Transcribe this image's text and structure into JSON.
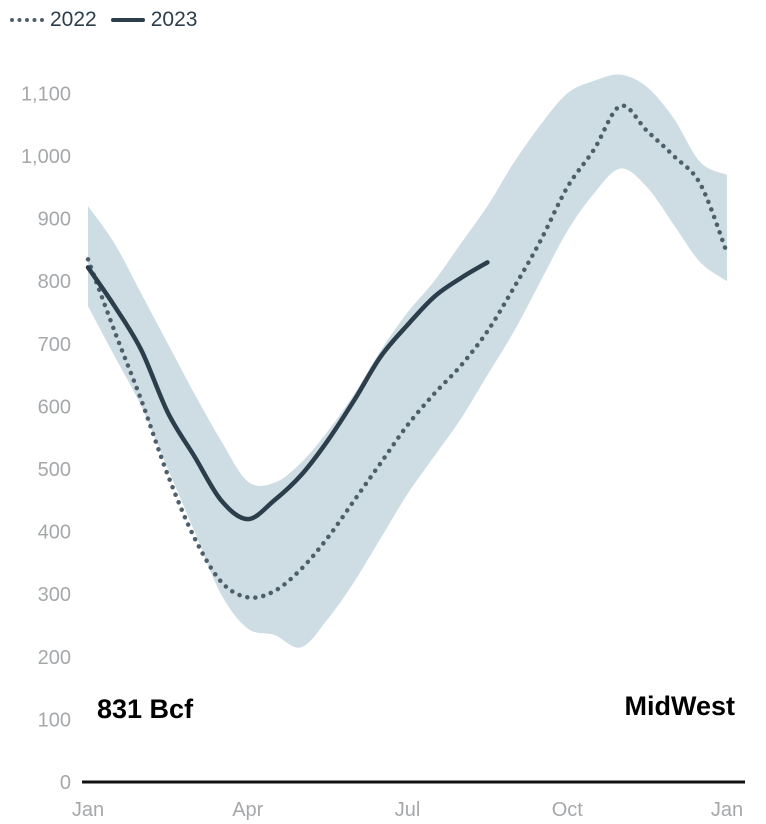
{
  "chart_data": {
    "type": "line",
    "title": "",
    "xlabel": "",
    "ylabel": "",
    "ylim": [
      0,
      1150
    ],
    "x_ticks": [
      "Jan",
      "Apr",
      "Jul",
      "Oct",
      "Jan"
    ],
    "y_ticks": [
      0,
      100,
      200,
      300,
      400,
      500,
      600,
      700,
      800,
      900,
      "1,000",
      "1,100"
    ],
    "y_tick_values": [
      0,
      100,
      200,
      300,
      400,
      500,
      600,
      700,
      800,
      900,
      1000,
      1100
    ],
    "legend": {
      "position": "top-left",
      "entries": [
        "2022",
        "2023"
      ]
    },
    "grid": false,
    "annotations": {
      "value": "831 Bcf",
      "region": "MidWest"
    },
    "band": {
      "x_month": [
        0,
        0.5,
        1,
        1.5,
        2,
        2.5,
        3,
        3.5,
        4,
        4.5,
        5,
        5.5,
        6,
        6.5,
        7,
        7.5,
        8,
        8.5,
        9,
        9.5,
        10,
        10.5,
        11,
        11.5,
        12
      ],
      "upper": [
        920,
        860,
        780,
        700,
        620,
        545,
        480,
        478,
        510,
        560,
        620,
        690,
        750,
        800,
        860,
        920,
        990,
        1050,
        1100,
        1120,
        1130,
        1110,
        1060,
        990,
        970
      ],
      "lower": [
        760,
        680,
        600,
        500,
        400,
        300,
        245,
        235,
        215,
        260,
        320,
        390,
        460,
        520,
        580,
        650,
        720,
        800,
        880,
        940,
        980,
        950,
        890,
        830,
        800
      ]
    },
    "series": [
      {
        "name": "2022",
        "style": "dotted",
        "color": "#4d5f6b",
        "x_month": [
          0,
          0.5,
          1,
          1.5,
          2,
          2.5,
          3,
          3.5,
          4,
          4.5,
          5,
          5.5,
          6,
          6.5,
          7,
          7.5,
          8,
          8.5,
          9,
          9.5,
          10,
          10.5,
          11,
          11.5,
          12
        ],
        "values": [
          835,
          720,
          610,
          490,
          390,
          320,
          295,
          305,
          340,
          390,
          450,
          510,
          570,
          620,
          665,
          720,
          790,
          865,
          950,
          1010,
          1080,
          1040,
          1000,
          955,
          845
        ]
      },
      {
        "name": "2023",
        "style": "solid",
        "color": "#2c3e4c",
        "x_month": [
          0,
          0.5,
          1,
          1.5,
          2,
          2.5,
          3,
          3.5,
          4,
          4.5,
          5,
          5.5,
          6,
          6.5,
          7,
          7.5
        ],
        "values": [
          822,
          760,
          690,
          590,
          520,
          450,
          420,
          450,
          490,
          545,
          610,
          680,
          730,
          775,
          805,
          830
        ]
      }
    ]
  }
}
